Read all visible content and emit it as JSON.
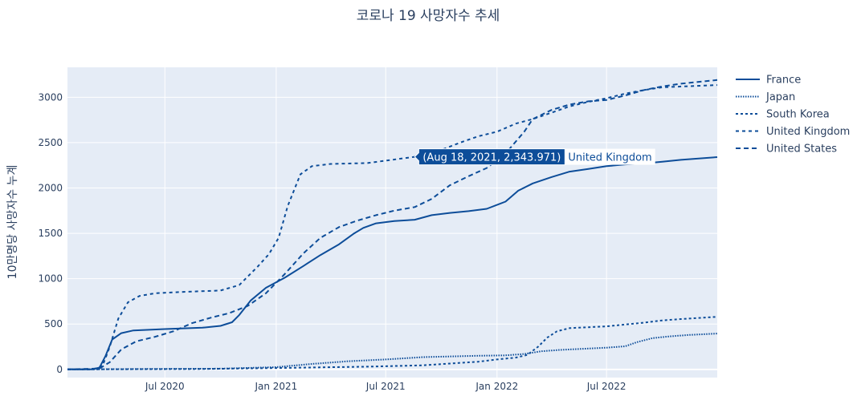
{
  "chart_data": {
    "type": "line",
    "title": "코로나 19 사망자수 추세",
    "xlabel": "",
    "ylabel": "10만명당 사망자수 누계",
    "x_range": [
      "2020-01-22",
      "2022-12-31"
    ],
    "ylim": [
      -90,
      3330
    ],
    "x_ticks": [
      {
        "date": "2020-07-01",
        "label": "Jul 2020"
      },
      {
        "date": "2021-01-01",
        "label": "Jan 2021"
      },
      {
        "date": "2021-07-01",
        "label": "Jul 2021"
      },
      {
        "date": "2022-01-01",
        "label": "Jan 2022"
      },
      {
        "date": "2022-07-01",
        "label": "Jul 2022"
      }
    ],
    "y_ticks": [
      0,
      500,
      1000,
      1500,
      2000,
      2500,
      3000
    ],
    "grid": true,
    "legend_position": "right",
    "line_color": "#0d4d99",
    "plot_bg": "#e5ecf6",
    "series": [
      {
        "name": "France",
        "dash": "solid",
        "points": [
          [
            "2020-01-22",
            0
          ],
          [
            "2020-03-01",
            0
          ],
          [
            "2020-03-15",
            20
          ],
          [
            "2020-03-25",
            150
          ],
          [
            "2020-04-05",
            330
          ],
          [
            "2020-04-20",
            400
          ],
          [
            "2020-05-10",
            430
          ],
          [
            "2020-07-01",
            445
          ],
          [
            "2020-09-01",
            460
          ],
          [
            "2020-10-01",
            480
          ],
          [
            "2020-10-20",
            520
          ],
          [
            "2020-11-01",
            600
          ],
          [
            "2020-11-20",
            760
          ],
          [
            "2020-12-15",
            900
          ],
          [
            "2021-01-15",
            1010
          ],
          [
            "2021-02-15",
            1140
          ],
          [
            "2021-03-15",
            1260
          ],
          [
            "2021-04-15",
            1380
          ],
          [
            "2021-05-10",
            1500
          ],
          [
            "2021-05-25",
            1560
          ],
          [
            "2021-06-15",
            1610
          ],
          [
            "2021-07-15",
            1635
          ],
          [
            "2021-08-18",
            1650
          ],
          [
            "2021-09-15",
            1700
          ],
          [
            "2021-10-15",
            1725
          ],
          [
            "2021-11-15",
            1745
          ],
          [
            "2021-12-15",
            1770
          ],
          [
            "2022-01-15",
            1850
          ],
          [
            "2022-02-05",
            1970
          ],
          [
            "2022-03-01",
            2050
          ],
          [
            "2022-04-01",
            2120
          ],
          [
            "2022-05-01",
            2180
          ],
          [
            "2022-06-01",
            2210
          ],
          [
            "2022-07-01",
            2240
          ],
          [
            "2022-08-01",
            2260
          ],
          [
            "2022-09-01",
            2270
          ],
          [
            "2022-10-01",
            2290
          ],
          [
            "2022-11-01",
            2310
          ],
          [
            "2022-12-31",
            2340
          ]
        ]
      },
      {
        "name": "Japan",
        "dash": "dot",
        "points": [
          [
            "2020-01-22",
            0
          ],
          [
            "2020-06-01",
            5
          ],
          [
            "2020-10-01",
            8
          ],
          [
            "2021-01-01",
            25
          ],
          [
            "2021-03-01",
            60
          ],
          [
            "2021-05-01",
            90
          ],
          [
            "2021-07-01",
            110
          ],
          [
            "2021-09-01",
            135
          ],
          [
            "2021-12-01",
            150
          ],
          [
            "2022-01-15",
            155
          ],
          [
            "2022-02-15",
            170
          ],
          [
            "2022-03-15",
            200
          ],
          [
            "2022-04-15",
            215
          ],
          [
            "2022-06-01",
            230
          ],
          [
            "2022-07-01",
            240
          ],
          [
            "2022-08-01",
            255
          ],
          [
            "2022-08-20",
            300
          ],
          [
            "2022-09-15",
            345
          ],
          [
            "2022-10-15",
            365
          ],
          [
            "2022-11-15",
            380
          ],
          [
            "2022-12-31",
            395
          ]
        ]
      },
      {
        "name": "South Korea",
        "dash": "dashdot",
        "points": [
          [
            "2020-01-22",
            0
          ],
          [
            "2020-09-01",
            5
          ],
          [
            "2021-01-01",
            15
          ],
          [
            "2021-06-01",
            30
          ],
          [
            "2021-09-01",
            45
          ],
          [
            "2021-12-01",
            85
          ],
          [
            "2022-01-01",
            110
          ],
          [
            "2022-02-01",
            130
          ],
          [
            "2022-02-20",
            160
          ],
          [
            "2022-03-10",
            250
          ],
          [
            "2022-03-25",
            350
          ],
          [
            "2022-04-10",
            420
          ],
          [
            "2022-05-01",
            455
          ],
          [
            "2022-06-01",
            465
          ],
          [
            "2022-07-01",
            475
          ],
          [
            "2022-08-01",
            495
          ],
          [
            "2022-09-01",
            515
          ],
          [
            "2022-10-01",
            540
          ],
          [
            "2022-11-01",
            555
          ],
          [
            "2022-12-31",
            580
          ]
        ]
      },
      {
        "name": "United Kingdom",
        "dash": "dash",
        "points": [
          [
            "2020-01-22",
            0
          ],
          [
            "2020-03-05",
            0
          ],
          [
            "2020-03-20",
            40
          ],
          [
            "2020-04-01",
            250
          ],
          [
            "2020-04-15",
            560
          ],
          [
            "2020-05-01",
            740
          ],
          [
            "2020-05-20",
            810
          ],
          [
            "2020-06-15",
            840
          ],
          [
            "2020-08-01",
            855
          ],
          [
            "2020-10-01",
            870
          ],
          [
            "2020-11-01",
            930
          ],
          [
            "2020-12-01",
            1130
          ],
          [
            "2020-12-20",
            1270
          ],
          [
            "2021-01-05",
            1450
          ],
          [
            "2021-01-20",
            1800
          ],
          [
            "2021-02-10",
            2150
          ],
          [
            "2021-03-01",
            2240
          ],
          [
            "2021-04-01",
            2265
          ],
          [
            "2021-06-01",
            2275
          ],
          [
            "2021-08-18",
            2344
          ],
          [
            "2021-10-01",
            2420
          ],
          [
            "2021-11-01",
            2500
          ],
          [
            "2021-12-01",
            2570
          ],
          [
            "2022-01-01",
            2620
          ],
          [
            "2022-02-01",
            2710
          ],
          [
            "2022-03-01",
            2760
          ],
          [
            "2022-04-01",
            2830
          ],
          [
            "2022-05-01",
            2900
          ],
          [
            "2022-06-01",
            2950
          ],
          [
            "2022-07-01",
            2990
          ],
          [
            "2022-08-01",
            3040
          ],
          [
            "2022-09-01",
            3080
          ],
          [
            "2022-10-01",
            3110
          ],
          [
            "2022-12-31",
            3135
          ]
        ]
      },
      {
        "name": "United States",
        "dash": "longdash",
        "points": [
          [
            "2020-01-22",
            0
          ],
          [
            "2020-03-15",
            10
          ],
          [
            "2020-04-01",
            80
          ],
          [
            "2020-04-20",
            220
          ],
          [
            "2020-05-15",
            310
          ],
          [
            "2020-06-15",
            360
          ],
          [
            "2020-07-15",
            420
          ],
          [
            "2020-08-15",
            510
          ],
          [
            "2020-09-15",
            570
          ],
          [
            "2020-10-15",
            620
          ],
          [
            "2020-11-15",
            700
          ],
          [
            "2020-12-15",
            840
          ],
          [
            "2021-01-15",
            1050
          ],
          [
            "2021-02-15",
            1280
          ],
          [
            "2021-03-15",
            1450
          ],
          [
            "2021-04-15",
            1570
          ],
          [
            "2021-05-15",
            1640
          ],
          [
            "2021-06-15",
            1700
          ],
          [
            "2021-07-15",
            1750
          ],
          [
            "2021-08-18",
            1790
          ],
          [
            "2021-09-15",
            1880
          ],
          [
            "2021-10-15",
            2030
          ],
          [
            "2021-11-15",
            2130
          ],
          [
            "2021-12-15",
            2220
          ],
          [
            "2022-01-15",
            2380
          ],
          [
            "2022-02-15",
            2620
          ],
          [
            "2022-03-01",
            2760
          ],
          [
            "2022-04-01",
            2860
          ],
          [
            "2022-05-01",
            2920
          ],
          [
            "2022-06-01",
            2955
          ],
          [
            "2022-07-01",
            2970
          ],
          [
            "2022-08-01",
            3020
          ],
          [
            "2022-09-01",
            3080
          ],
          [
            "2022-10-01",
            3120
          ],
          [
            "2022-11-01",
            3150
          ],
          [
            "2022-12-31",
            3190
          ]
        ]
      }
    ],
    "annotation": {
      "series": "United Kingdom",
      "date": "2021-08-18",
      "value": 2343.971,
      "label": "(Aug 18, 2021, 2,343.971)",
      "name": "United Kingdom"
    }
  }
}
